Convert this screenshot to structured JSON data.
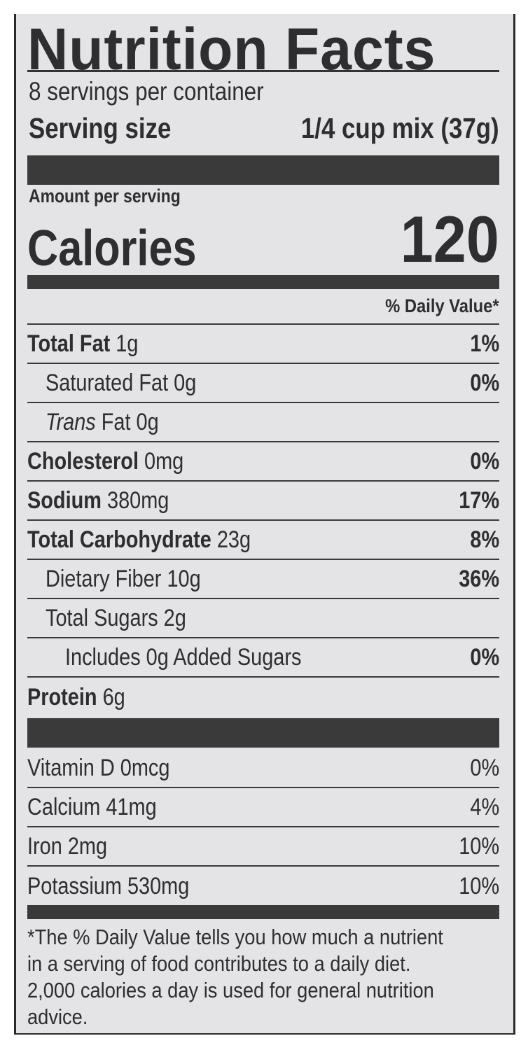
{
  "title": "Nutrition Facts",
  "servings_per_container": "8 servings per container",
  "serving_size": {
    "label": "Serving size",
    "value": "1/4 cup mix (37g)"
  },
  "amount_per_serving": "Amount per serving",
  "calories": {
    "label": "Calories",
    "value": "120"
  },
  "daily_value_header": "% Daily Value*",
  "nutrients": [
    {
      "name": "Total Fat",
      "amount": "1g",
      "dv": "1%"
    },
    {
      "name": "Saturated Fat",
      "amount": "0g",
      "dv": "0%"
    },
    {
      "name": "Trans",
      "name_rest": "Fat",
      "amount": "0g",
      "dv": ""
    },
    {
      "name": "Cholesterol",
      "amount": "0mg",
      "dv": "0%"
    },
    {
      "name": "Sodium",
      "amount": "380mg",
      "dv": "17%"
    },
    {
      "name": "Total Carbohydrate",
      "amount": "23g",
      "dv": "8%"
    },
    {
      "name": "Dietary Fiber",
      "amount": "10g",
      "dv": "36%"
    },
    {
      "name": "Total Sugars",
      "amount": "2g",
      "dv": ""
    },
    {
      "name": "Includes 0g Added Sugars",
      "amount": "",
      "dv": "0%"
    },
    {
      "name": "Protein",
      "amount": "6g",
      "dv": ""
    }
  ],
  "vitamins": [
    {
      "name": "Vitamin D 0mcg",
      "dv": "0%"
    },
    {
      "name": "Calcium 41mg",
      "dv": "4%"
    },
    {
      "name": "Iron 2mg",
      "dv": "10%"
    },
    {
      "name": "Potassium 530mg",
      "dv": "10%"
    }
  ],
  "footnote": "*The % Daily Value tells you how much a nutrient in a serving of food contributes to a daily diet. 2,000 calories a day is used for general nutrition advice."
}
